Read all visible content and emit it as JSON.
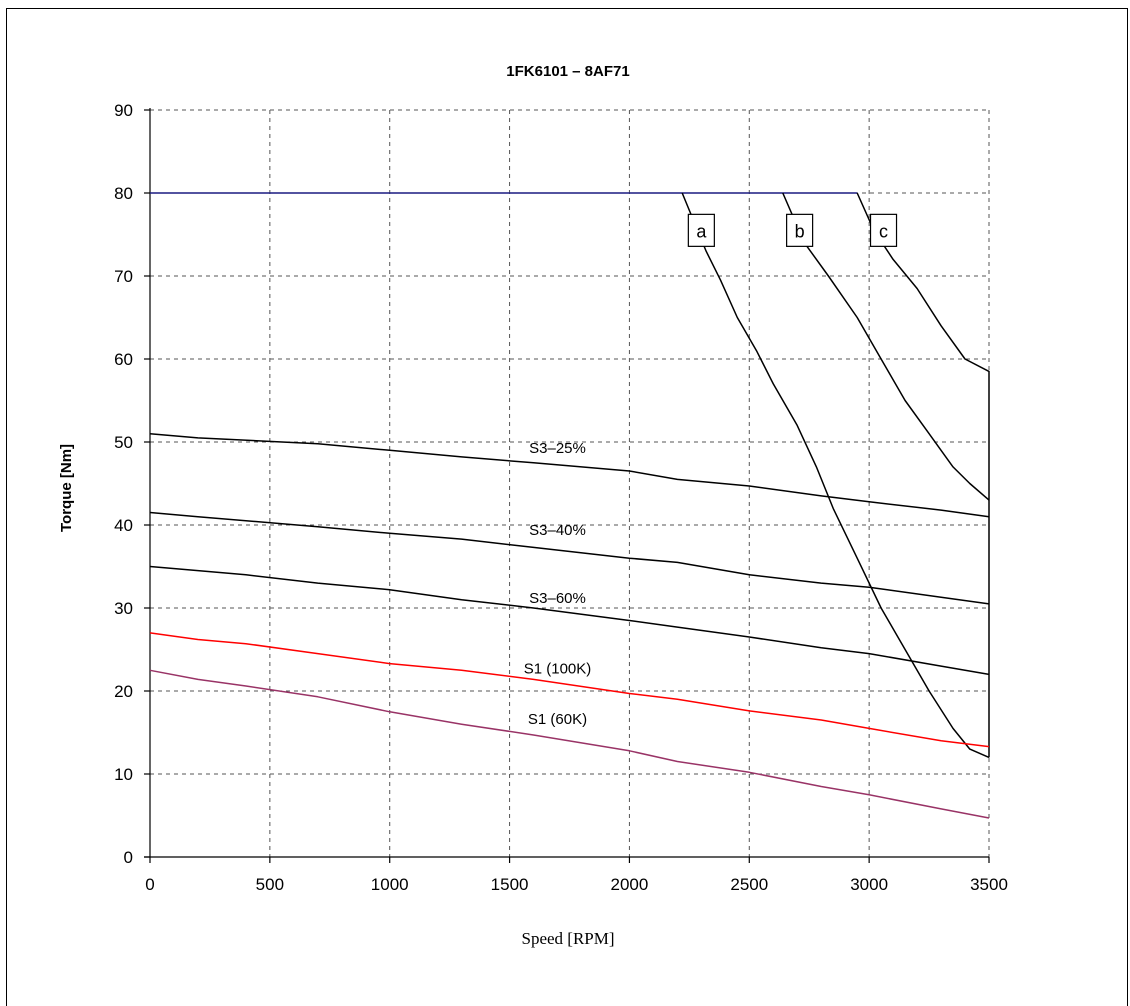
{
  "chart_data": {
    "type": "line",
    "title": "1FK6101 – 8AF71",
    "xlabel": "Speed [RPM]",
    "ylabel": "Torque [Nm]",
    "xlim": [
      0,
      3500
    ],
    "ylim": [
      0,
      90
    ],
    "xticks": [
      0,
      500,
      1000,
      1500,
      2000,
      2500,
      3000,
      3500
    ],
    "yticks": [
      0,
      10,
      20,
      30,
      40,
      50,
      60,
      70,
      80,
      90
    ],
    "grid": true,
    "series": [
      {
        "id": "max",
        "name": "",
        "color": "#1a1a80",
        "points": [
          [
            0,
            80
          ],
          [
            2950,
            80
          ]
        ]
      },
      {
        "id": "a",
        "name": "a",
        "color": "#000000",
        "points": [
          [
            2220,
            80
          ],
          [
            2320,
            73
          ],
          [
            2380,
            69.5
          ],
          [
            2450,
            65
          ],
          [
            2530,
            61
          ],
          [
            2600,
            57
          ],
          [
            2700,
            52
          ],
          [
            2780,
            47
          ],
          [
            2850,
            42
          ],
          [
            2950,
            36
          ],
          [
            3050,
            30
          ],
          [
            3150,
            25
          ],
          [
            3250,
            20
          ],
          [
            3350,
            15.5
          ],
          [
            3420,
            13
          ],
          [
            3500,
            12
          ]
        ]
      },
      {
        "id": "b",
        "name": "b",
        "color": "#000000",
        "points": [
          [
            2640,
            80
          ],
          [
            2730,
            74
          ],
          [
            2830,
            70
          ],
          [
            2950,
            65
          ],
          [
            3050,
            60
          ],
          [
            3150,
            55
          ],
          [
            3250,
            51
          ],
          [
            3350,
            47
          ],
          [
            3420,
            45
          ],
          [
            3500,
            43
          ]
        ]
      },
      {
        "id": "c",
        "name": "c",
        "color": "#000000",
        "points": [
          [
            2950,
            80
          ],
          [
            3020,
            75.5
          ],
          [
            3100,
            72
          ],
          [
            3200,
            68.5
          ],
          [
            3300,
            64
          ],
          [
            3400,
            60
          ],
          [
            3500,
            58.5
          ],
          [
            3500,
            12
          ]
        ]
      },
      {
        "id": "s3_25",
        "name": "S3–25%",
        "color": "#000000",
        "points": [
          [
            0,
            51
          ],
          [
            200,
            50.5
          ],
          [
            700,
            49.8
          ],
          [
            1000,
            49
          ],
          [
            1300,
            48.2
          ],
          [
            1600,
            47.5
          ],
          [
            2000,
            46.5
          ],
          [
            2200,
            45.5
          ],
          [
            2500,
            44.7
          ],
          [
            2800,
            43.5
          ],
          [
            3000,
            42.8
          ],
          [
            3300,
            41.8
          ],
          [
            3500,
            41
          ]
        ]
      },
      {
        "id": "s3_40",
        "name": "S3–40%",
        "color": "#000000",
        "points": [
          [
            0,
            41.5
          ],
          [
            200,
            41
          ],
          [
            700,
            39.8
          ],
          [
            1000,
            39
          ],
          [
            1300,
            38.3
          ],
          [
            1600,
            37.3
          ],
          [
            2000,
            36
          ],
          [
            2200,
            35.5
          ],
          [
            2500,
            34
          ],
          [
            2800,
            33
          ],
          [
            3000,
            32.5
          ],
          [
            3300,
            31.3
          ],
          [
            3500,
            30.5
          ]
        ]
      },
      {
        "id": "s3_60",
        "name": "S3–60%",
        "color": "#000000",
        "points": [
          [
            0,
            35
          ],
          [
            400,
            34
          ],
          [
            700,
            33
          ],
          [
            1000,
            32.2
          ],
          [
            1300,
            31
          ],
          [
            1600,
            30
          ],
          [
            2000,
            28.5
          ],
          [
            2200,
            27.7
          ],
          [
            2500,
            26.5
          ],
          [
            2800,
            25.2
          ],
          [
            3000,
            24.5
          ],
          [
            3300,
            23
          ],
          [
            3500,
            22
          ]
        ]
      },
      {
        "id": "s1_100k",
        "name": "S1 (100K)",
        "color": "#ff0000",
        "points": [
          [
            0,
            27
          ],
          [
            200,
            26.2
          ],
          [
            400,
            25.7
          ],
          [
            700,
            24.5
          ],
          [
            1000,
            23.3
          ],
          [
            1300,
            22.5
          ],
          [
            1600,
            21.4
          ],
          [
            2000,
            19.7
          ],
          [
            2200,
            19
          ],
          [
            2500,
            17.6
          ],
          [
            2800,
            16.5
          ],
          [
            3000,
            15.5
          ],
          [
            3300,
            14
          ],
          [
            3500,
            13.3
          ]
        ]
      },
      {
        "id": "s1_60k",
        "name": "S1 (60K)",
        "color": "#993366",
        "points": [
          [
            0,
            22.5
          ],
          [
            200,
            21.4
          ],
          [
            400,
            20.6
          ],
          [
            700,
            19.3
          ],
          [
            1000,
            17.5
          ],
          [
            1300,
            16
          ],
          [
            1600,
            14.7
          ],
          [
            2000,
            12.8
          ],
          [
            2200,
            11.5
          ],
          [
            2500,
            10.2
          ],
          [
            2800,
            8.5
          ],
          [
            3000,
            7.5
          ],
          [
            3300,
            5.8
          ],
          [
            3500,
            4.7
          ]
        ]
      }
    ],
    "annotations": [
      {
        "text": "a",
        "x": 2300,
        "y": 75.5,
        "boxed": true
      },
      {
        "text": "b",
        "x": 2710,
        "y": 75.5,
        "boxed": true
      },
      {
        "text": "c",
        "x": 3060,
        "y": 75.5,
        "boxed": true
      },
      {
        "text": "S3–25%",
        "x": 1700,
        "y": 49.3,
        "boxed": false
      },
      {
        "text": "S3–40%",
        "x": 1700,
        "y": 39.4,
        "boxed": false
      },
      {
        "text": "S3–60%",
        "x": 1700,
        "y": 31.2,
        "boxed": false
      },
      {
        "text": "S1 (100K)",
        "x": 1700,
        "y": 22.7,
        "boxed": false
      },
      {
        "text": "S1 (60K)",
        "x": 1700,
        "y": 16.6,
        "boxed": false
      }
    ]
  }
}
